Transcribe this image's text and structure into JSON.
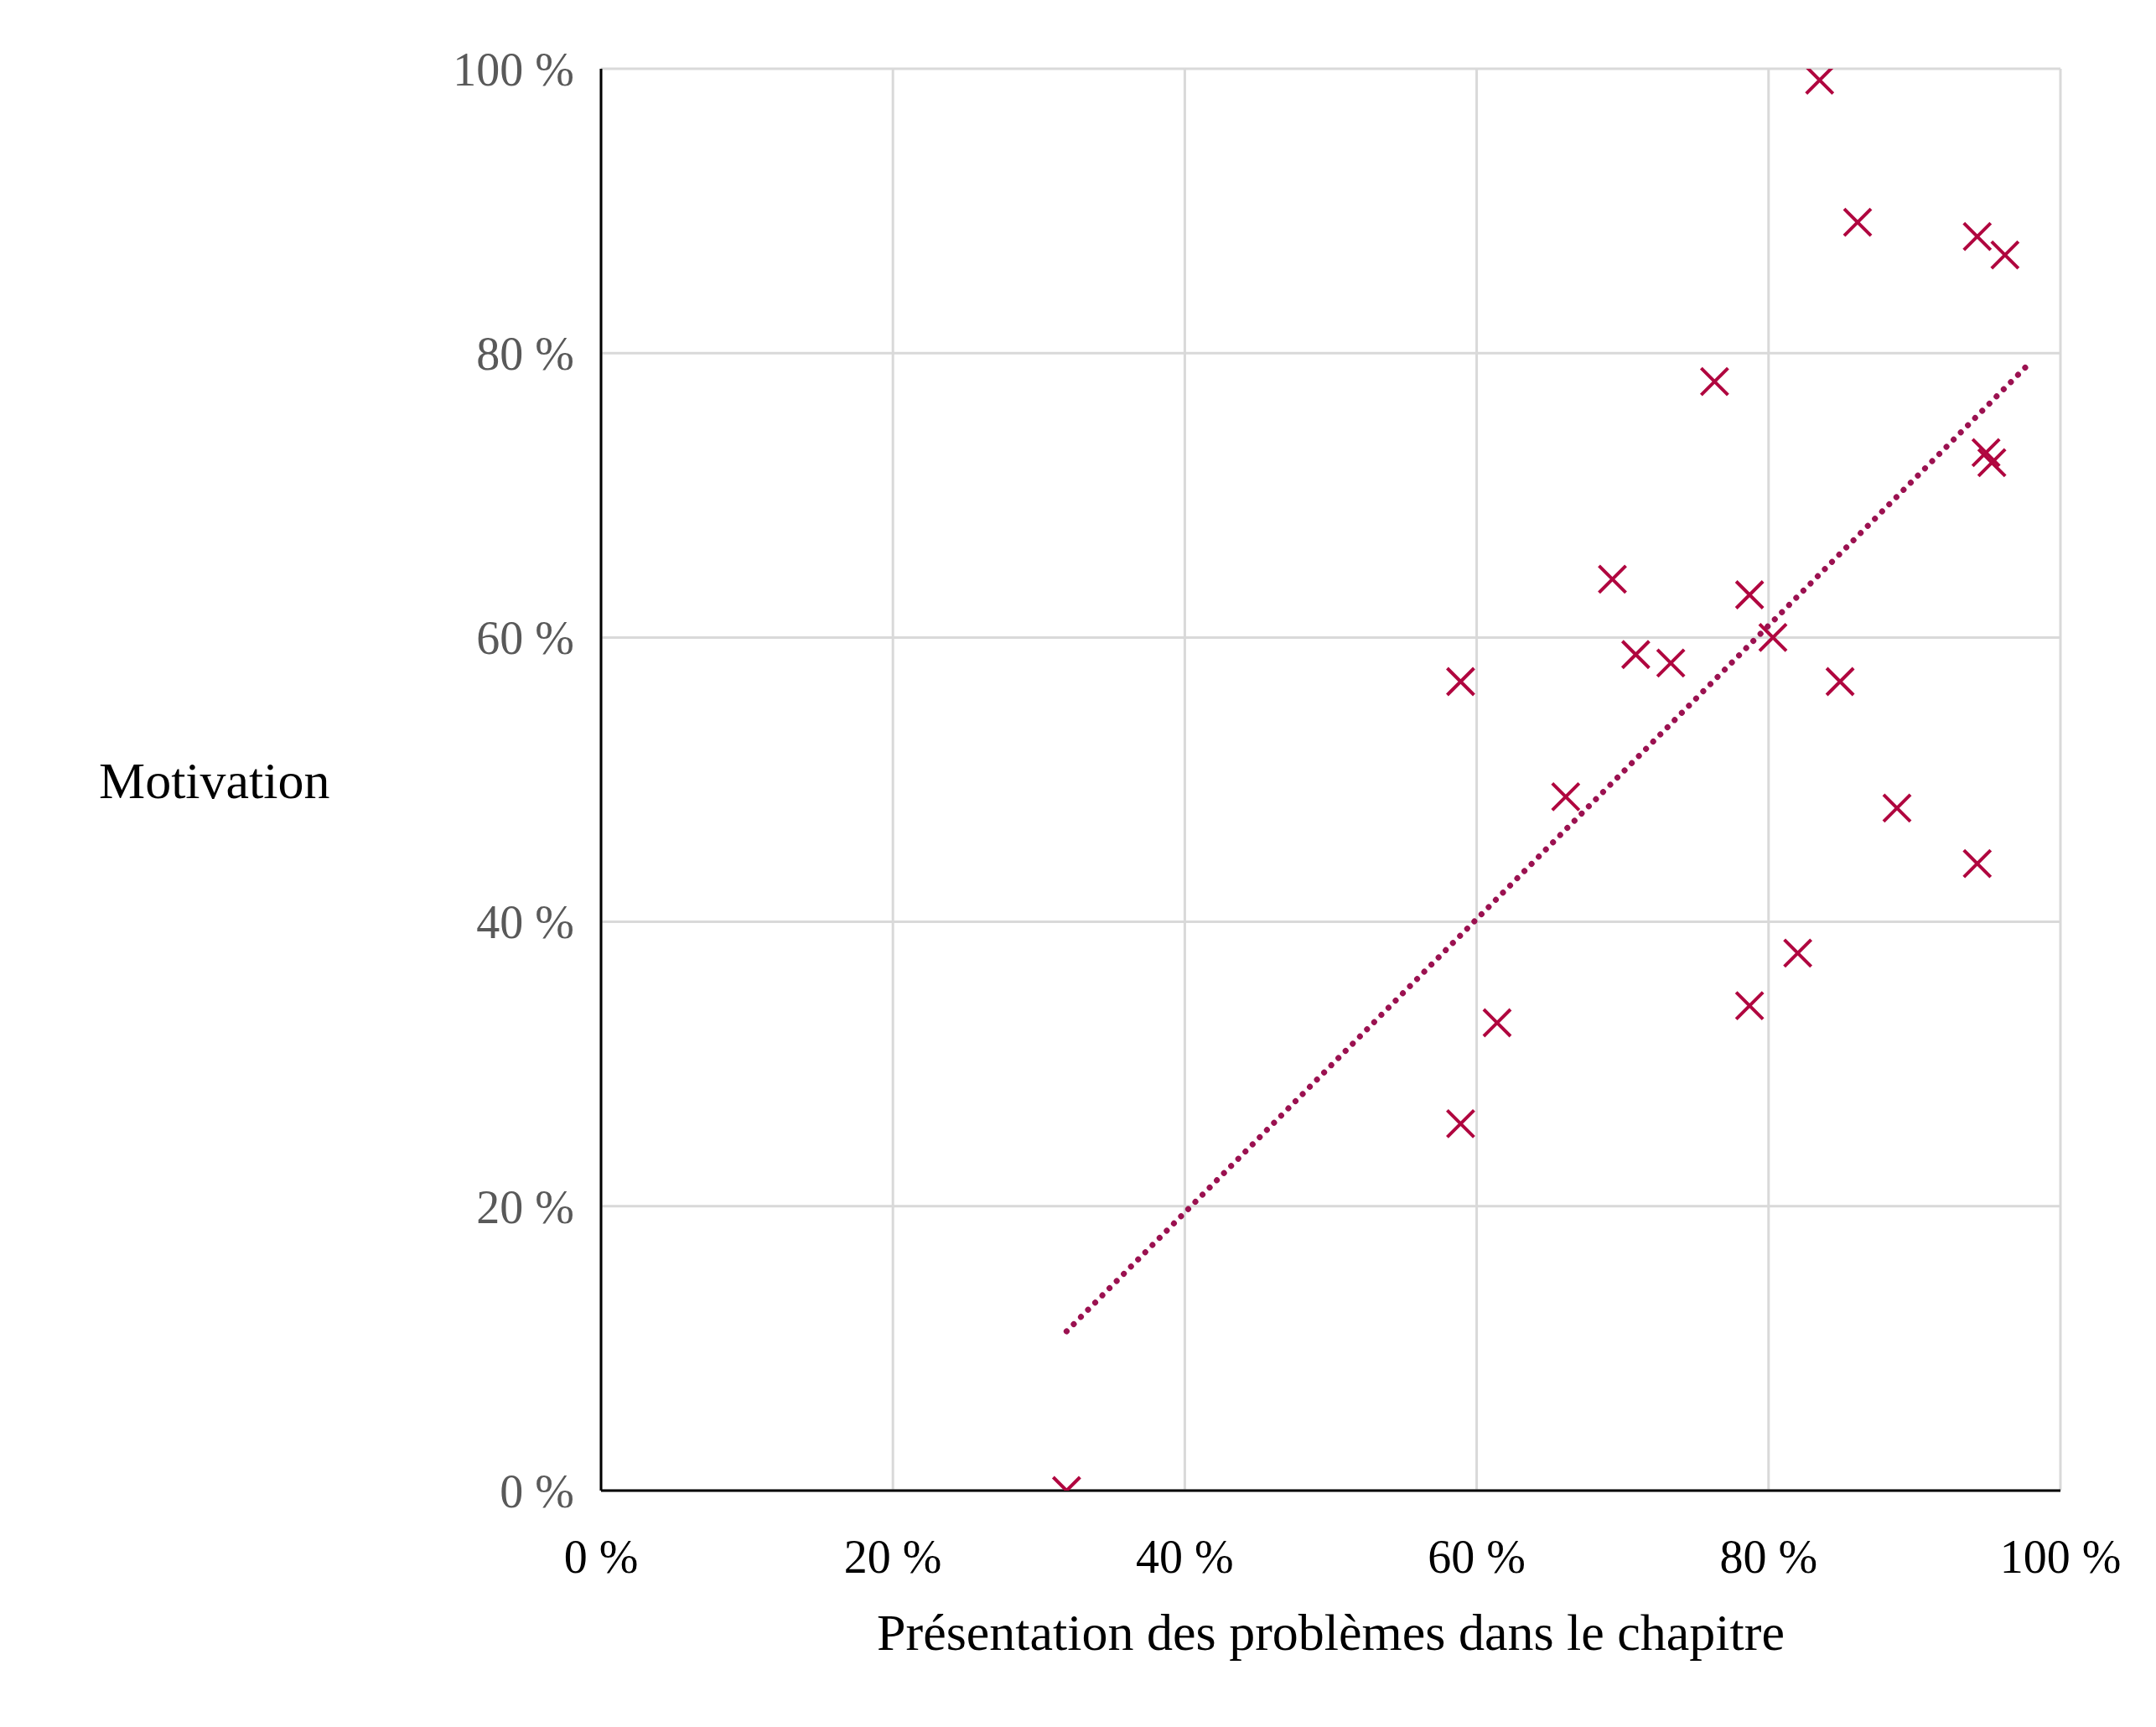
{
  "chart_data": {
    "type": "scatter",
    "xlabel": "Présentation des problèmes dans le chapitre",
    "ylabel": "Motivation",
    "xlim": [
      0,
      100
    ],
    "ylim": [
      0,
      100
    ],
    "xticks": [
      {
        "value": 0,
        "label": "0 %"
      },
      {
        "value": 20,
        "label": "20 %"
      },
      {
        "value": 40,
        "label": "40 %"
      },
      {
        "value": 60,
        "label": "60 %"
      },
      {
        "value": 80,
        "label": "80 %"
      },
      {
        "value": 100,
        "label": "100 %"
      }
    ],
    "yticks": [
      {
        "value": 0,
        "label": "0 %"
      },
      {
        "value": 20,
        "label": "20 %"
      },
      {
        "value": 40,
        "label": "40 %"
      },
      {
        "value": 60,
        "label": "60 %"
      },
      {
        "value": 80,
        "label": "80 %"
      },
      {
        "value": 100,
        "label": "100 %"
      }
    ],
    "grid": true,
    "legend": false,
    "series": [
      {
        "marker": "cross",
        "color": "#b0063f",
        "x": [
          31.9,
          58.9,
          61.4,
          58.9,
          66.1,
          69.3,
          70.9,
          73.3,
          76.3,
          78.7,
          78.7,
          80.3,
          82.0,
          83.5,
          84.9,
          86.1,
          88.8,
          94.3,
          96.2,
          94.9,
          95.3,
          94.3
        ],
        "values": [
          0,
          25.8,
          32.9,
          56.9,
          48.8,
          64.1,
          58.8,
          58.2,
          78.0,
          63.0,
          34.1,
          60.0,
          37.8,
          99.2,
          56.9,
          89.2,
          48.0,
          88.2,
          86.9,
          73.0,
          72.3,
          44.1
        ]
      },
      {
        "type": "line",
        "marker": "none",
        "color": "#9b1150",
        "line_style": "dotted",
        "x": [
          31.9,
          97.8
        ],
        "values": [
          11.2,
          79.2
        ]
      }
    ]
  }
}
